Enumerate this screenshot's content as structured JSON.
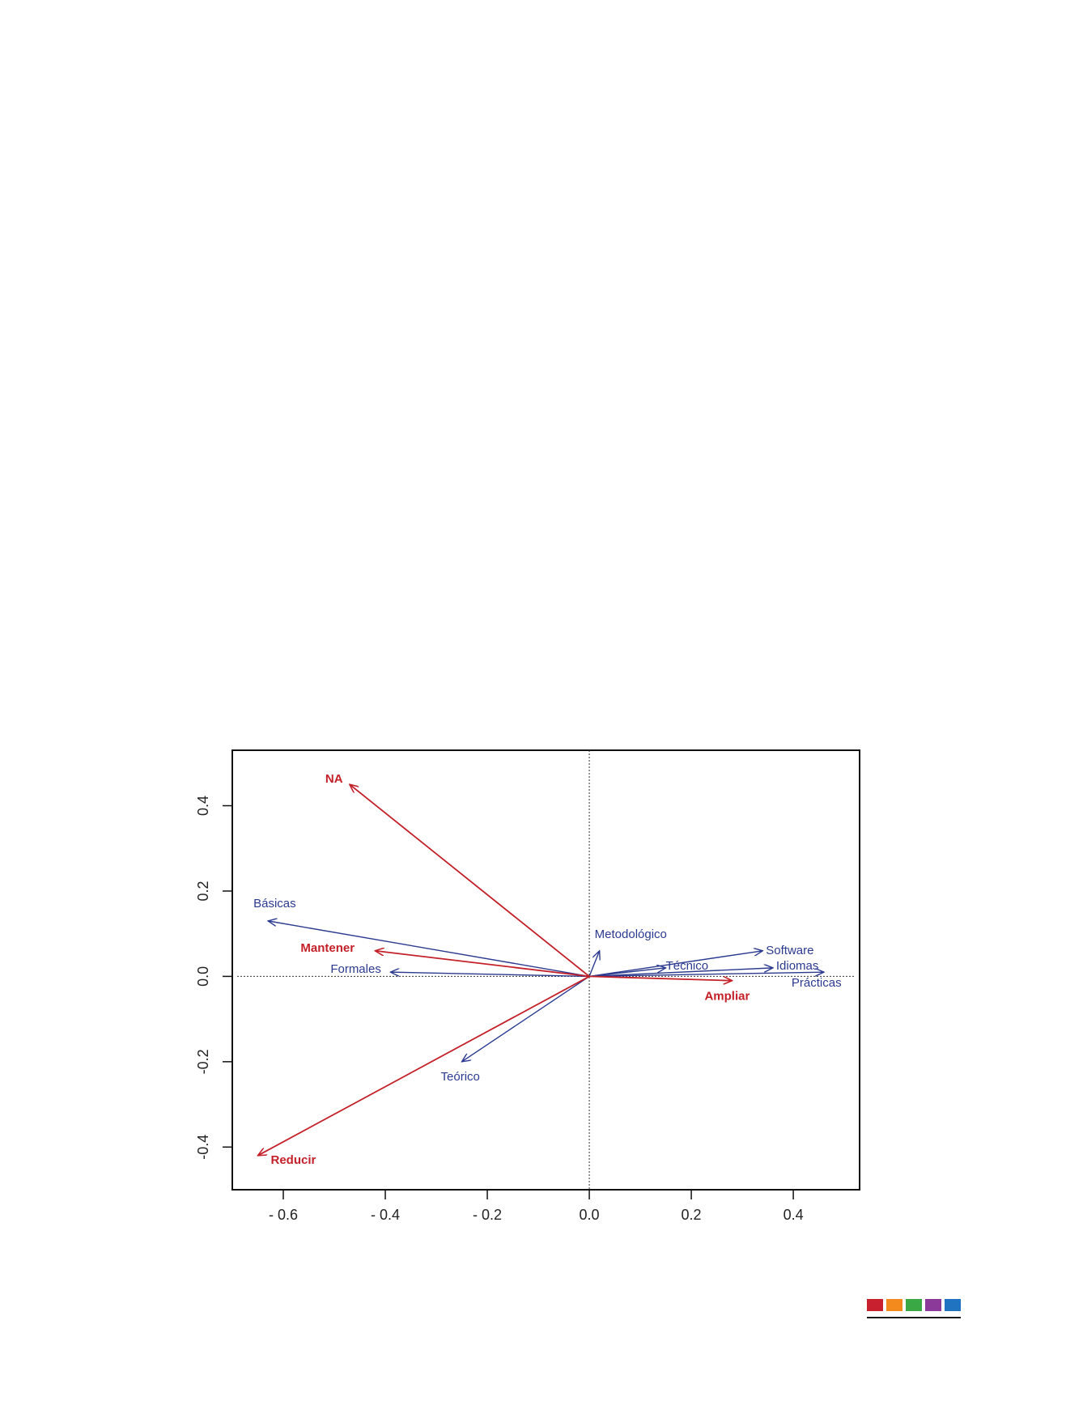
{
  "chart_data": {
    "type": "biplot",
    "xlim": [
      -0.7,
      0.53
    ],
    "ylim": [
      -0.5,
      0.53
    ],
    "x_ticks": [
      -0.6,
      -0.4,
      -0.2,
      0.0,
      0.2,
      0.4
    ],
    "x_tick_labels": [
      "- 0.6",
      "- 0.4",
      "- 0.2",
      "0.0",
      "0.2",
      "0.4"
    ],
    "y_ticks": [
      -0.4,
      -0.2,
      0.0,
      0.2,
      0.4
    ],
    "y_tick_labels": [
      "-0.4",
      "-0.2",
      "0.0",
      "0.2",
      "0.4"
    ],
    "reference_lines": {
      "x": 0.0,
      "y": 0.0,
      "style": "dotted"
    },
    "vectors": [
      {
        "label": "NA",
        "x": -0.47,
        "y": 0.45,
        "group": "red"
      },
      {
        "label": "Mantener",
        "x": -0.42,
        "y": 0.06,
        "group": "red"
      },
      {
        "label": "Reducir",
        "x": -0.65,
        "y": -0.42,
        "group": "red"
      },
      {
        "label": "Ampliar",
        "x": 0.28,
        "y": -0.01,
        "group": "red"
      },
      {
        "label": "Básicas",
        "x": -0.63,
        "y": 0.13,
        "group": "blue"
      },
      {
        "label": "Formales",
        "x": -0.39,
        "y": 0.01,
        "group": "blue"
      },
      {
        "label": "Teórico",
        "x": -0.25,
        "y": -0.2,
        "group": "blue"
      },
      {
        "label": "Metodológico",
        "x": 0.02,
        "y": 0.06,
        "group": "blue"
      },
      {
        "label": "Técnico",
        "x": 0.15,
        "y": 0.02,
        "group": "blue"
      },
      {
        "label": "Software",
        "x": 0.34,
        "y": 0.06,
        "group": "blue"
      },
      {
        "label": "Idiomas",
        "x": 0.36,
        "y": 0.02,
        "group": "blue"
      },
      {
        "label": "Prácticas",
        "x": 0.46,
        "y": 0.01,
        "group": "blue"
      }
    ],
    "colors": {
      "red": "#c4202a",
      "blue": "#2b3a8f"
    }
  },
  "footer_logo": {
    "colors": [
      "#c8202f",
      "#f28a1e",
      "#3aa845",
      "#8b3a9a",
      "#1f73c0"
    ]
  }
}
